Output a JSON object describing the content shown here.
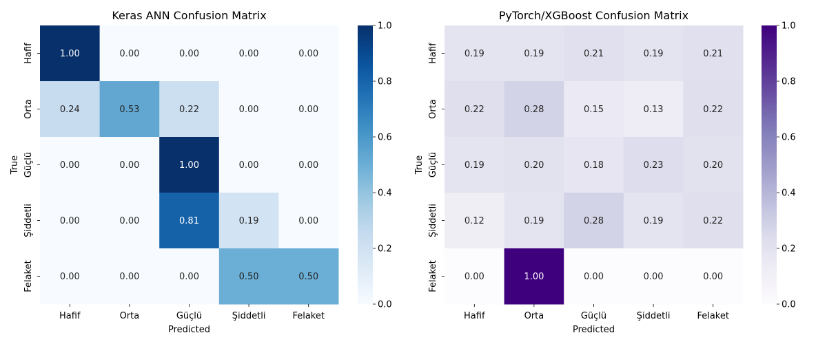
{
  "chart_data": [
    {
      "type": "heatmap",
      "title": "Keras ANN Confusion Matrix",
      "xlabel": "Predicted",
      "ylabel": "True",
      "x_categories": [
        "Hafif",
        "Orta",
        "Güçlü",
        "Şiddetli",
        "Felaket"
      ],
      "y_categories": [
        "Hafif",
        "Orta",
        "Güçlü",
        "Şiddetli",
        "Felaket"
      ],
      "values": [
        [
          1.0,
          0.0,
          0.0,
          0.0,
          0.0
        ],
        [
          0.24,
          0.53,
          0.22,
          0.0,
          0.0
        ],
        [
          0.0,
          0.0,
          1.0,
          0.0,
          0.0
        ],
        [
          0.0,
          0.0,
          0.81,
          0.19,
          0.0
        ],
        [
          0.0,
          0.0,
          0.0,
          0.5,
          0.5
        ]
      ],
      "value_format": "0.00",
      "colormap": "Blues",
      "colorbar": {
        "range": [
          0,
          1
        ],
        "ticks": [
          "0.0",
          "0.2",
          "0.4",
          "0.6",
          "0.8",
          "1.0"
        ]
      }
    },
    {
      "type": "heatmap",
      "title": "PyTorch/XGBoost Confusion Matrix",
      "xlabel": "Predicted",
      "ylabel": "True",
      "x_categories": [
        "Hafif",
        "Orta",
        "Güçlü",
        "Şiddetli",
        "Felaket"
      ],
      "y_categories": [
        "Hafif",
        "Orta",
        "Güçlü",
        "Şiddetli",
        "Felaket"
      ],
      "values": [
        [
          0.19,
          0.19,
          0.21,
          0.19,
          0.21
        ],
        [
          0.22,
          0.28,
          0.15,
          0.13,
          0.22
        ],
        [
          0.19,
          0.2,
          0.18,
          0.23,
          0.2
        ],
        [
          0.12,
          0.19,
          0.28,
          0.19,
          0.22
        ],
        [
          0.0,
          1.0,
          0.0,
          0.0,
          0.0
        ]
      ],
      "value_format": "0.00",
      "colormap": "Purples",
      "colorbar": {
        "range": [
          0,
          1
        ],
        "ticks": [
          "0.0",
          "0.2",
          "0.4",
          "0.6",
          "0.8",
          "1.0"
        ]
      }
    }
  ]
}
